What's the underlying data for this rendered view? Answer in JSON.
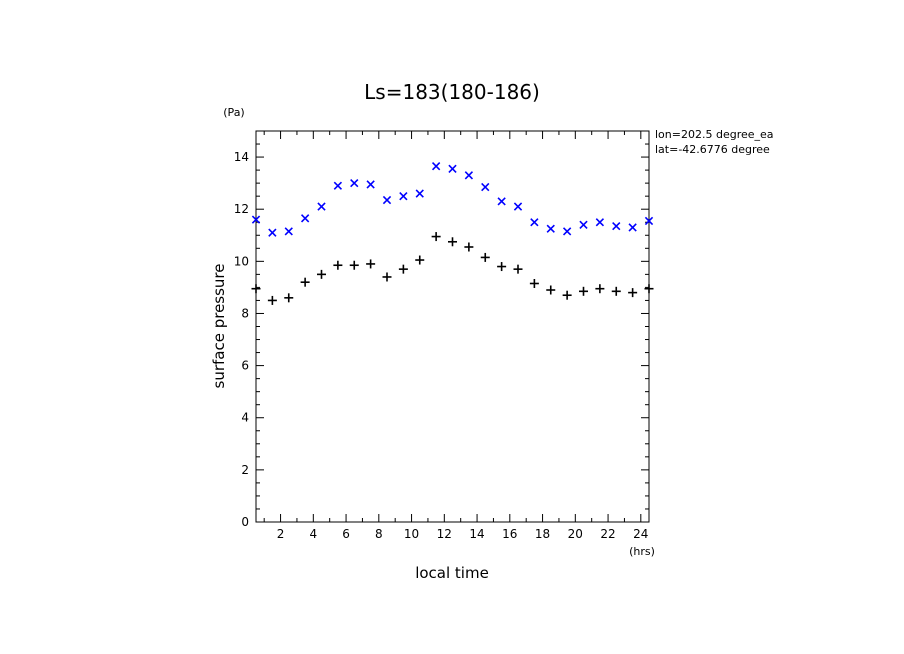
{
  "chart_data": {
    "type": "scatter",
    "title": "Ls=183(180-186)",
    "xlabel": "local time",
    "ylabel": "surface pressure",
    "x_unit": "(hrs)",
    "y_unit": "(Pa)",
    "xlim": [
      0.5,
      24.5
    ],
    "ylim": [
      0,
      15
    ],
    "x_ticks": [
      2,
      4,
      6,
      8,
      10,
      12,
      14,
      16,
      18,
      20,
      22,
      24
    ],
    "y_ticks": [
      0,
      2,
      4,
      6,
      8,
      10,
      12,
      14
    ],
    "annotations": [
      "lon=202.5 degree_ea",
      "lat=-42.6776 degree"
    ],
    "x": [
      0.5,
      1.5,
      2.5,
      3.5,
      4.5,
      5.5,
      6.5,
      7.5,
      8.5,
      9.5,
      10.5,
      11.5,
      12.5,
      13.5,
      14.5,
      15.5,
      16.5,
      17.5,
      18.5,
      19.5,
      20.5,
      21.5,
      22.5,
      23.5,
      24.5
    ],
    "series": [
      {
        "marker": "x",
        "color": "#0000ff",
        "values": [
          11.6,
          11.1,
          11.15,
          11.65,
          12.1,
          12.9,
          13.0,
          12.95,
          12.35,
          12.5,
          12.6,
          13.65,
          13.55,
          13.3,
          12.85,
          12.3,
          12.1,
          11.5,
          11.25,
          11.15,
          11.4,
          11.5,
          11.35,
          11.3,
          11.55
        ]
      },
      {
        "marker": "+",
        "color": "#000000",
        "values": [
          8.95,
          8.5,
          8.6,
          9.2,
          9.5,
          9.85,
          9.85,
          9.9,
          9.4,
          9.7,
          10.05,
          10.95,
          10.75,
          10.55,
          10.15,
          9.8,
          9.7,
          9.15,
          8.9,
          8.7,
          8.85,
          8.95,
          8.85,
          8.8,
          8.95
        ]
      }
    ]
  }
}
